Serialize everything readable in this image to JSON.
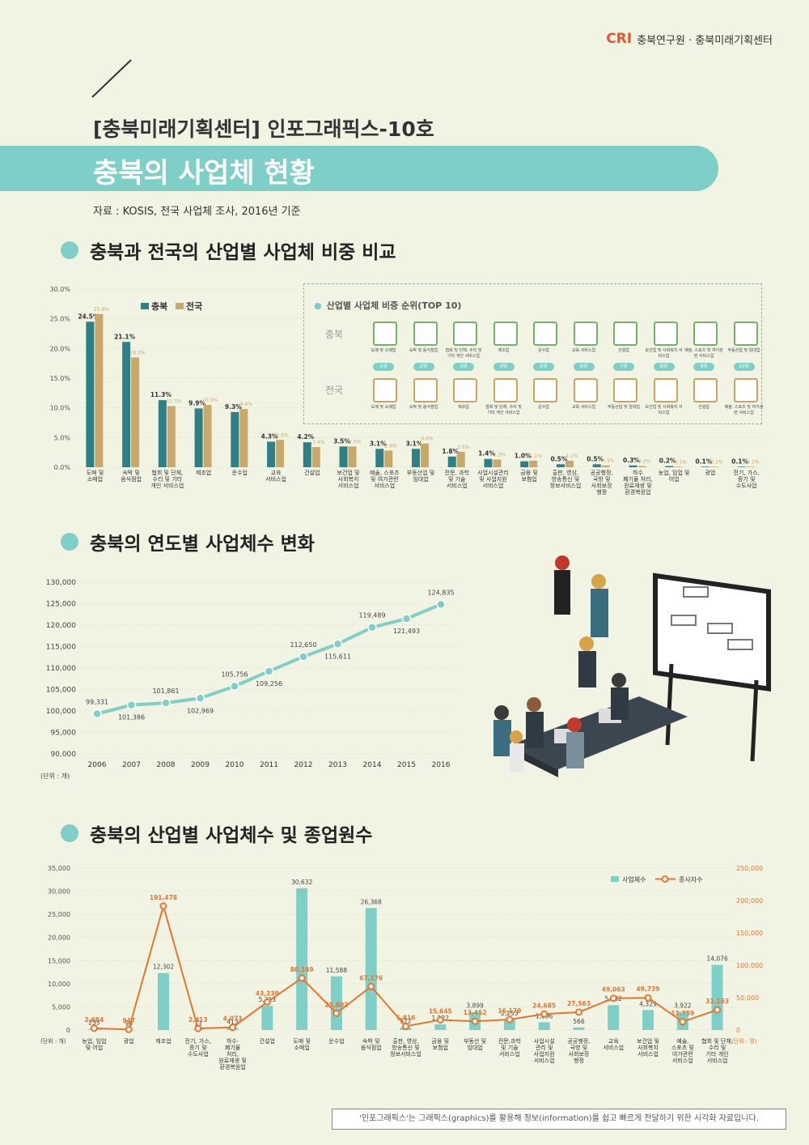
{
  "header": {
    "logo_mark": "CRI",
    "org": "충북연구원 · 충북미래기획센터",
    "subtitle": "[충북미래기획센터] 인포그래픽스-10호",
    "title": "충북의 사업체 현황",
    "source": "자료 : KOSIS, 전국 사업체 조사, 2016년 기준"
  },
  "sections": {
    "s1": "충북과 전국의 산업별 사업체 비중 비교",
    "s2": "충북의 연도별 사업체수 변화",
    "s3": "충북의 산업별 사업체수 및 종업원수"
  },
  "footer": "'인포그래픽스'는 그래픽스(graphics)를 활용해 정보(information)를 쉽고 빠르게 전달하기 위한 시각화 자료입니다.",
  "top10": {
    "title": "산업별 사업체 비중 순위(TOP 10)",
    "row1_label": "충북",
    "row2_label": "전국",
    "ranks": [
      "1위",
      "2위",
      "3위",
      "4위",
      "5위",
      "6위",
      "7위",
      "8위",
      "9위",
      "10위"
    ],
    "chungbuk": [
      "도매 및 소매업",
      "숙박 및 음식점업",
      "협회 및 단체, 수리 및 기타 개인 서비스업",
      "제조업",
      "운수업",
      "교육 서비스업",
      "건설업",
      "보건업 및 사회복지 서비스업",
      "예술, 스포츠 및 여가관련 서비스업",
      "부동산업 및 임대업"
    ],
    "national": [
      "도매 및 소매업",
      "숙박 및 음식점업",
      "제조업",
      "협회 및 단체, 수리 및 기타 개인 서비스업",
      "운수업",
      "교육 서비스업",
      "부동산업 및 임대업",
      "보건업 및 사회복지 서비스업",
      "건설업",
      "예술, 스포츠 및 여가관련 서비스업"
    ]
  },
  "chart_data": [
    {
      "type": "bar",
      "title": "",
      "categories": [
        "도매 및\n소매업",
        "숙박 및\n음식점업",
        "협회 및 단체,\n수리 및 기타\n개인 서비스업",
        "제조업",
        "운수업",
        "교육\n서비스업",
        "건설업",
        "보건업 및\n사회복지\n서비스업",
        "예술, 스포츠\n및 여가관련\n서비스업",
        "부동산업 및\n임대업",
        "전문, 과학\n및 기술\n서비스업",
        "사업시설관리\n및 사업지원\n서비스업",
        "금융 및\n보험업",
        "출판, 영상,\n방송통신 및\n정보서비스업",
        "공공행정,\n국방 및\n사회보장\n행정",
        "하수\n폐기물 처리,\n원료재생 및\n환경복원업",
        "농업, 임업 및\n어업",
        "광업",
        "전기, 가스,\n증기 및\n수도사업"
      ],
      "series": [
        {
          "name": "충북",
          "color": "#2f7f86",
          "values": [
            24.5,
            21.1,
            11.3,
            9.9,
            9.3,
            4.3,
            4.2,
            3.5,
            3.1,
            3.1,
            1.8,
            1.4,
            1.0,
            0.5,
            0.5,
            0.3,
            0.2,
            0.1,
            0.1
          ],
          "labels": [
            "24.5%",
            "21.1%",
            "11.3%",
            "9.9%",
            "9.3%",
            "4.3%",
            "4.2%",
            "3.5%",
            "3.1%",
            "3.1%",
            "1.8%",
            "1.4%",
            "1.0%",
            "0.5%",
            "0.5%",
            "0.3%",
            "0.2%",
            "0.1%",
            "0.1%"
          ]
        },
        {
          "name": "전국",
          "color": "#c9a86b",
          "values": [
            25.8,
            18.5,
            10.3,
            10.5,
            9.8,
            4.6,
            3.4,
            3.5,
            2.8,
            4.0,
            2.6,
            1.3,
            1.1,
            1.1,
            0.3,
            0.2,
            0.1,
            0.1,
            0.1
          ],
          "labels": [
            "25.8%",
            "18.5%",
            "10.3%",
            "10.5%",
            "9.8%",
            "4.6%",
            "3.4%",
            "3.5%",
            "2.8%",
            "4.0%",
            "2.6%",
            "1.3%",
            "1.1%",
            "1.1%",
            "0.3%",
            "0.2%",
            "0.1%",
            "0.1%",
            "0.1%"
          ]
        }
      ],
      "yticks": [
        "0.0%",
        "5.0%",
        "10.0%",
        "15.0%",
        "20.0%",
        "25.0%",
        "30.0%"
      ],
      "ylim": [
        0,
        30
      ]
    },
    {
      "type": "line",
      "title": "",
      "x": [
        "2006",
        "2007",
        "2008",
        "2009",
        "2010",
        "2011",
        "2012",
        "2013",
        "2014",
        "2015",
        "2016"
      ],
      "values": [
        99331,
        101386,
        101861,
        102969,
        105756,
        109256,
        112650,
        115611,
        119489,
        121493,
        124835
      ],
      "labels": [
        "99,331",
        "101,386",
        "101,861",
        "102,969",
        "105,756",
        "109,256",
        "112,650",
        "115,611",
        "119,489",
        "121,493",
        "124,835"
      ],
      "yticks": [
        "90,000",
        "95,000",
        "100,000",
        "105,000",
        "110,000",
        "115,000",
        "120,000",
        "125,000",
        "130,000"
      ],
      "ylim": [
        90000,
        130000
      ],
      "unit": "(단위 : 개)",
      "color": "#7fcfc9"
    },
    {
      "type": "bar",
      "title": "",
      "categories": [
        "농업, 임업\n및 어업",
        "광업",
        "제조업",
        "전기, 가스,\n증기 및\n수도사업",
        "하수·\n폐기물\n처리,\n원료재생 및\n환경복원업",
        "건설업",
        "도매 및\n소매업",
        "운수업",
        "숙박 및\n음식점업",
        "출판, 영상,\n방송통신 및\n정보서비스업",
        "금융 및\n보험업",
        "부동산 및\n임대업",
        "전문,과학\n및 기술\n서비스업",
        "사업시설\n관리 및\n사업지원\n서비스업",
        "공공행정,\n국방 및\n사회보장\n행정",
        "교육\n서비스업",
        "보건업 및\n사회복지\n서비스업",
        "예술,\n스포츠 및\n여가관련\n서비스업",
        "협회 및 단체,\n수리 및\n기타 개인\n서비스업"
      ],
      "series": [
        {
          "name": "사업체수",
          "color": "#7fcfc9",
          "values": [
            233,
            94,
            12302,
            73,
            413,
            5213,
            30632,
            11588,
            26368,
            572,
            1222,
            3899,
            2253,
            1696,
            566,
            5382,
            4329,
            3922,
            14076
          ],
          "labels": [
            "233",
            "94",
            "12,302",
            "73",
            "413",
            "5,213",
            "30,632",
            "11,588",
            "26,368",
            "572",
            "1,222",
            "3,899",
            "2,253",
            "1,696",
            "566",
            "5,382",
            "4,329",
            "3,922",
            "14,076"
          ]
        },
        {
          "name": "종사자수",
          "color": "#e8742c",
          "values": [
            2684,
            947,
            191478,
            2413,
            4073,
            43239,
            80149,
            25802,
            67176,
            5816,
            15645,
            13452,
            16179,
            24685,
            27563,
            49063,
            49739,
            12759,
            31163
          ],
          "labels": [
            "2,684",
            "947",
            "191,478",
            "2,413",
            "4,073",
            "43,239",
            "80,149",
            "25,802",
            "67,176",
            "5,816",
            "15,645",
            "13,452",
            "16,179",
            "24,685",
            "27,563",
            "49,063",
            "49,739",
            "12,759",
            "31,163"
          ]
        }
      ],
      "yticks_left": [
        "0",
        "5,000",
        "10,000",
        "15,000",
        "20,000",
        "25,000",
        "30,000",
        "35,000"
      ],
      "yticks_right": [
        "0",
        "50,000",
        "100,000",
        "150,000",
        "200,000",
        "250,000"
      ],
      "ylim_left": [
        0,
        35000
      ],
      "ylim_right": [
        0,
        250000
      ],
      "unit_left": "(단위 : 개)",
      "unit_right": "(단위 : 명)"
    }
  ]
}
